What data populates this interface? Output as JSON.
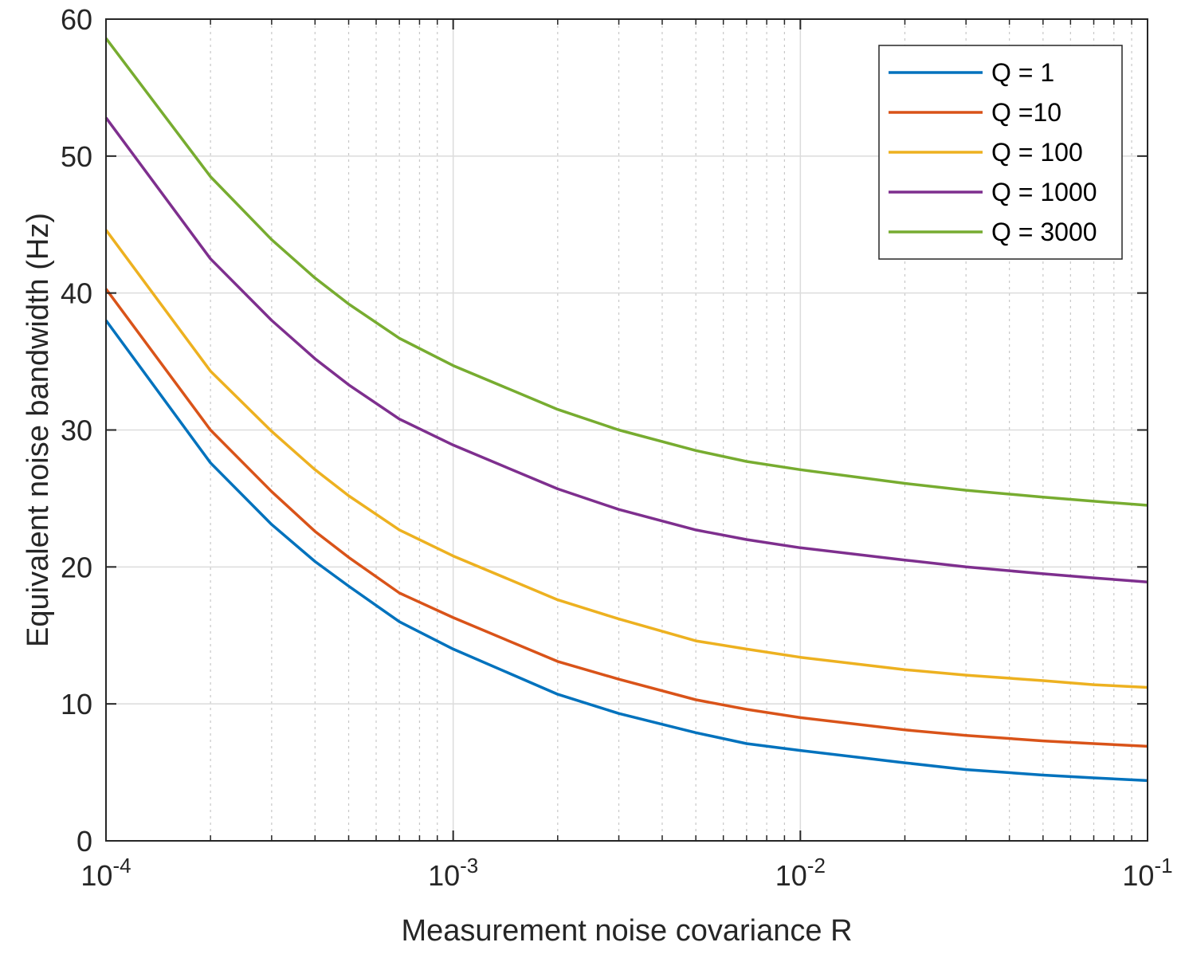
{
  "chart_data": {
    "type": "line",
    "title": "",
    "xlabel": "Measurement noise covariance R",
    "ylabel": "Equivalent noise bandwidth (Hz)",
    "xscale": "log",
    "xlim": [
      0.0001,
      0.1
    ],
    "ylim": [
      0,
      60
    ],
    "yticks": [
      0,
      10,
      20,
      30,
      40,
      50,
      60
    ],
    "xticks": [
      {
        "value": 0.0001,
        "base": "10",
        "exp": "-4"
      },
      {
        "value": 0.001,
        "base": "10",
        "exp": "-3"
      },
      {
        "value": 0.01,
        "base": "10",
        "exp": "-2"
      },
      {
        "value": 0.1,
        "base": "10",
        "exp": "-1"
      }
    ],
    "grid": true,
    "legend_position": "top-right",
    "x": [
      0.0001,
      0.0002,
      0.0003,
      0.0004,
      0.0005,
      0.0007,
      0.001,
      0.002,
      0.003,
      0.005,
      0.007,
      0.01,
      0.02,
      0.03,
      0.05,
      0.07,
      0.1
    ],
    "series": [
      {
        "name": "Q = 1",
        "color": "#0072BD",
        "values": [
          38.0,
          27.6,
          23.1,
          20.4,
          18.6,
          16.0,
          14.0,
          10.7,
          9.3,
          7.9,
          7.1,
          6.6,
          5.7,
          5.2,
          4.8,
          4.6,
          4.4
        ]
      },
      {
        "name": "Q =10",
        "color": "#D95319",
        "values": [
          40.3,
          30.0,
          25.5,
          22.6,
          20.7,
          18.1,
          16.3,
          13.1,
          11.8,
          10.3,
          9.6,
          9.0,
          8.1,
          7.7,
          7.3,
          7.1,
          6.9
        ]
      },
      {
        "name": "Q = 100",
        "color": "#EDB120",
        "values": [
          44.6,
          34.3,
          29.9,
          27.1,
          25.2,
          22.7,
          20.8,
          17.6,
          16.2,
          14.6,
          14.0,
          13.4,
          12.5,
          12.1,
          11.7,
          11.4,
          11.2
        ]
      },
      {
        "name": "Q = 1000",
        "color": "#7E2F8E",
        "values": [
          52.8,
          42.5,
          38.0,
          35.2,
          33.3,
          30.8,
          28.9,
          25.7,
          24.2,
          22.7,
          22.0,
          21.4,
          20.5,
          20.0,
          19.5,
          19.2,
          18.9
        ]
      },
      {
        "name": "Q = 3000",
        "color": "#77AC30",
        "values": [
          58.6,
          48.5,
          43.9,
          41.1,
          39.2,
          36.7,
          34.7,
          31.5,
          30.0,
          28.5,
          27.7,
          27.1,
          26.1,
          25.6,
          25.1,
          24.8,
          24.5
        ]
      }
    ]
  }
}
